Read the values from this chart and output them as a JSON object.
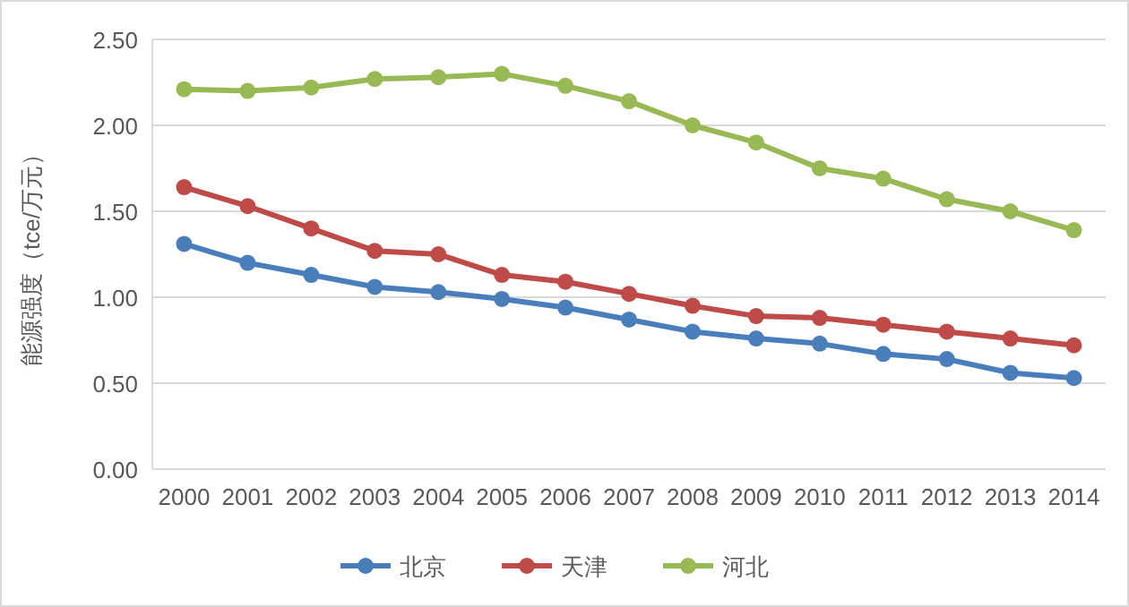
{
  "chart_data": {
    "type": "line",
    "ylabel": "能源强度（tce/万元）",
    "categories": [
      "2000",
      "2001",
      "2002",
      "2003",
      "2004",
      "2005",
      "2006",
      "2007",
      "2008",
      "2009",
      "2010",
      "2011",
      "2012",
      "2013",
      "2014"
    ],
    "series": [
      {
        "name": "北京",
        "color": "#4a7ebb",
        "values": [
          1.31,
          1.2,
          1.13,
          1.06,
          1.03,
          0.99,
          0.94,
          0.87,
          0.8,
          0.76,
          0.73,
          0.67,
          0.64,
          0.56,
          0.53
        ]
      },
      {
        "name": "天津",
        "color": "#be4b48",
        "values": [
          1.64,
          1.53,
          1.4,
          1.27,
          1.25,
          1.13,
          1.09,
          1.02,
          0.95,
          0.89,
          0.88,
          0.84,
          0.8,
          0.76,
          0.72
        ]
      },
      {
        "name": "河北",
        "color": "#98b954",
        "values": [
          2.21,
          2.2,
          2.22,
          2.27,
          2.28,
          2.3,
          2.23,
          2.14,
          2.0,
          1.9,
          1.75,
          1.69,
          1.57,
          1.5,
          1.39
        ]
      }
    ],
    "ylim": [
      0,
      2.5
    ],
    "yticks": [
      {
        "value": 0,
        "label": "0.00"
      },
      {
        "value": 0.5,
        "label": "0.50"
      },
      {
        "value": 1,
        "label": "1.00"
      },
      {
        "value": 1.5,
        "label": "1.50"
      },
      {
        "value": 2,
        "label": "2.00"
      },
      {
        "value": 2.5,
        "label": "2.50"
      }
    ],
    "grid": "y",
    "legend": "bottom",
    "marker": "circle",
    "line_style": "solid"
  }
}
